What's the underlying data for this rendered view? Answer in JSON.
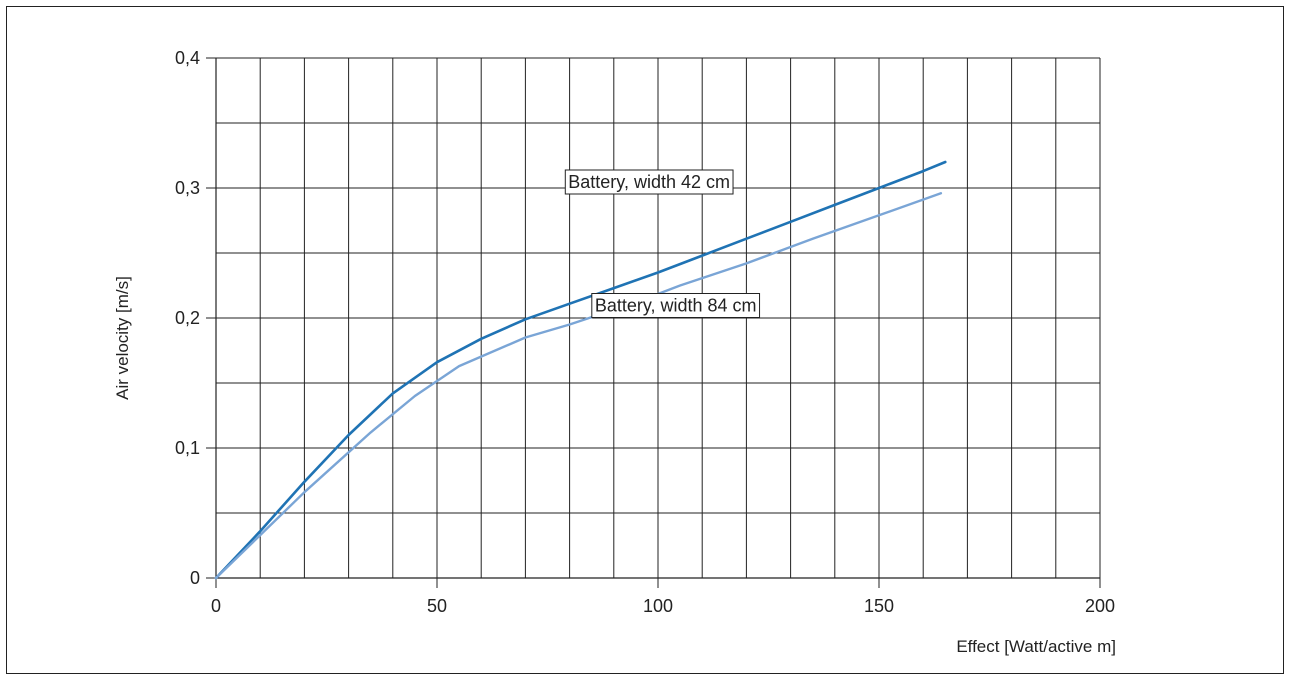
{
  "chart_data": {
    "type": "line",
    "title": "",
    "xlabel": "Effect [Watt/active m]",
    "ylabel": "Air velocity [m/s]",
    "xlim": [
      0,
      200
    ],
    "ylim": [
      0,
      0.4
    ],
    "x_ticks": [
      {
        "value": 0,
        "label": "0"
      },
      {
        "value": 50,
        "label": "50"
      },
      {
        "value": 100,
        "label": "100"
      },
      {
        "value": 150,
        "label": "150"
      },
      {
        "value": 200,
        "label": "200"
      }
    ],
    "y_ticks": [
      {
        "value": 0,
        "label": "0"
      },
      {
        "value": 0.1,
        "label": "0,1"
      },
      {
        "value": 0.2,
        "label": "0,2"
      },
      {
        "value": 0.3,
        "label": "0,3"
      },
      {
        "value": 0.4,
        "label": "0,4"
      }
    ],
    "grid": true,
    "x_grid_step": 10,
    "y_grid_step": 0.05,
    "series": [
      {
        "name": "Battery, width 42 cm",
        "color": "#1f73b4",
        "x": [
          0,
          10,
          20,
          30,
          40,
          50,
          60,
          70,
          80,
          90,
          100,
          110,
          120,
          130,
          140,
          150,
          160,
          165
        ],
        "y": [
          0,
          0.036,
          0.074,
          0.11,
          0.142,
          0.166,
          0.184,
          0.199,
          0.211,
          0.223,
          0.235,
          0.248,
          0.261,
          0.274,
          0.287,
          0.3,
          0.313,
          0.32
        ]
      },
      {
        "name": "Battery, width 84 cm",
        "color": "#7aa5d6",
        "x": [
          0,
          10,
          20,
          35,
          45,
          55,
          70,
          80,
          95,
          105,
          120,
          135,
          150,
          164
        ],
        "y": [
          0,
          0.033,
          0.066,
          0.112,
          0.14,
          0.163,
          0.185,
          0.195,
          0.212,
          0.225,
          0.242,
          0.261,
          0.279,
          0.296
        ]
      }
    ]
  }
}
